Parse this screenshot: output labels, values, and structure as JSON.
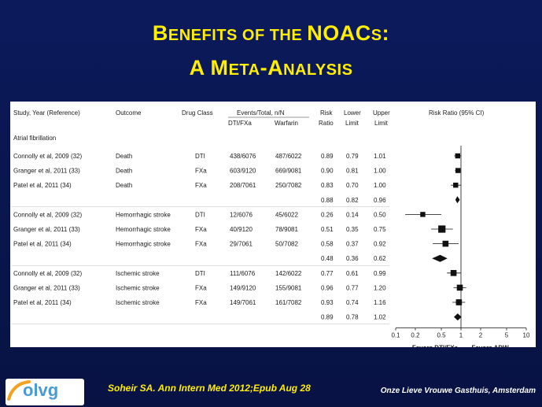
{
  "slide": {
    "title_line1_parts": [
      {
        "t": "B",
        "sc": false
      },
      {
        "t": "ENEFITS OF THE ",
        "sc": true
      },
      {
        "t": "NOAC",
        "sc": false
      },
      {
        "t": "S",
        "sc": true
      },
      {
        "t": ":",
        "sc": false
      }
    ],
    "title_line2_parts": [
      {
        "t": "A M",
        "sc": false
      },
      {
        "t": "ETA",
        "sc": true
      },
      {
        "t": "-A",
        "sc": false
      },
      {
        "t": "NALYSIS",
        "sc": true
      }
    ],
    "citation": "Soheir SA. Ann Intern Med 2012;Epub Aug 28",
    "organization": "Onze Lieve Vrouwe Gasthuis, Amsterdam",
    "logo_text": "olvg"
  },
  "table": {
    "headers": {
      "study": "Study, Year (Reference)",
      "outcome": "Outcome",
      "drug_class": "Drug Class",
      "events_group": "Events/Total, n/N",
      "events_dti": "DTI/FXa",
      "events_warfarin": "Warfarin",
      "rr_line1": "Risk",
      "rr_line2": "Ratio",
      "lower_line1": "Lower",
      "lower_line2": "Limit",
      "upper_line1": "Upper",
      "upper_line2": "Limit",
      "plot": "Risk Ratio (95% CI)"
    },
    "section": "Atrial fibrillation"
  },
  "chart_data": {
    "type": "forest",
    "title": "",
    "xlabel": "",
    "scale": "log",
    "xlim": [
      0.1,
      10
    ],
    "x_ticks": [
      "0.1",
      "0.2",
      "0.5",
      "1",
      "2",
      "5",
      "10"
    ],
    "x_tick_values": [
      0.1,
      0.2,
      0.5,
      1,
      2,
      5,
      10
    ],
    "reference_line": 1,
    "favors_left": "Favors DTI/FXa",
    "favors_right": "Favors ADW",
    "rows": [
      {
        "kind": "study",
        "study": "Connolly et al, 2009 (32)",
        "outcome": "Death",
        "drug_class": "DTI",
        "events_treatment": "438/6076",
        "events_warfarin": "487/6022",
        "rr": "0.89",
        "lower": "0.79",
        "upper": "1.01",
        "weight": "small"
      },
      {
        "kind": "study",
        "study": "Granger et al, 2011 (33)",
        "outcome": "Death",
        "drug_class": "FXa",
        "events_treatment": "603/9120",
        "events_warfarin": "669/9081",
        "rr": "0.90",
        "lower": "0.81",
        "upper": "1.00",
        "weight": "small"
      },
      {
        "kind": "study",
        "study": "Patel et al, 2011 (34)",
        "outcome": "Death",
        "drug_class": "FXa",
        "events_treatment": "208/7061",
        "events_warfarin": "250/7082",
        "rr": "0.83",
        "lower": "0.70",
        "upper": "1.00",
        "weight": "small"
      },
      {
        "kind": "pooled",
        "rr": "0.88",
        "lower": "0.82",
        "upper": "0.96"
      },
      {
        "kind": "study",
        "study": "Connolly et al, 2009 (32)",
        "outcome": "Hemorrhagic stroke",
        "drug_class": "DTI",
        "events_treatment": "12/6076",
        "events_warfarin": "45/6022",
        "rr": "0.26",
        "lower": "0.14",
        "upper": "0.50",
        "weight": "small"
      },
      {
        "kind": "study",
        "study": "Granger et al, 2011 (33)",
        "outcome": "Hemorrhagic stroke",
        "drug_class": "FXa",
        "events_treatment": "40/9120",
        "events_warfarin": "78/9081",
        "rr": "0.51",
        "lower": "0.35",
        "upper": "0.75",
        "weight": "large"
      },
      {
        "kind": "study",
        "study": "Patel et al, 2011 (34)",
        "outcome": "Hemorrhagic stroke",
        "drug_class": "FXa",
        "events_treatment": "29/7061",
        "events_warfarin": "50/7082",
        "rr": "0.58",
        "lower": "0.37",
        "upper": "0.92",
        "weight": "medium"
      },
      {
        "kind": "pooled",
        "rr": "0.48",
        "lower": "0.36",
        "upper": "0.62"
      },
      {
        "kind": "study",
        "study": "Connolly et al, 2009 (32)",
        "outcome": "Ischemic stroke",
        "drug_class": "DTI",
        "events_treatment": "111/6076",
        "events_warfarin": "142/6022",
        "rr": "0.77",
        "lower": "0.61",
        "upper": "0.99",
        "weight": "medium"
      },
      {
        "kind": "study",
        "study": "Granger et al, 2011 (33)",
        "outcome": "Ischemic stroke",
        "drug_class": "FXa",
        "events_treatment": "149/9120",
        "events_warfarin": "155/9081",
        "rr": "0.96",
        "lower": "0.77",
        "upper": "1.20",
        "weight": "medium"
      },
      {
        "kind": "study",
        "study": "Patel et al, 2011 (34)",
        "outcome": "Ischemic stroke",
        "drug_class": "FXa",
        "events_treatment": "149/7061",
        "events_warfarin": "161/7082",
        "rr": "0.93",
        "lower": "0.74",
        "upper": "1.16",
        "weight": "medium"
      },
      {
        "kind": "pooled",
        "rr": "0.89",
        "lower": "0.78",
        "upper": "1.02"
      }
    ]
  }
}
